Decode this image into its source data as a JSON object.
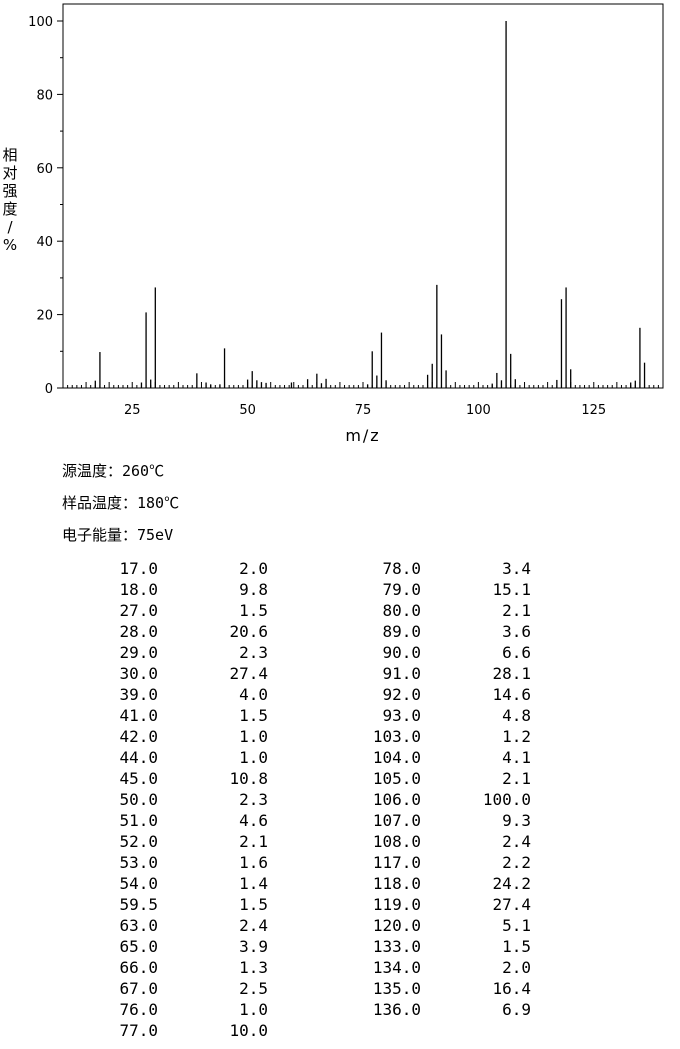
{
  "conditions": {
    "source_temp": "源温度：260℃",
    "sample_temp": "样品温度：180℃",
    "electron_energy": "电子能量：75eV"
  },
  "chart_data": {
    "type": "bar",
    "xlabel": "m/z",
    "ylabel": "相对强度/%",
    "xlim": [
      10,
      140
    ],
    "ylim": [
      0,
      100
    ],
    "xticks": [
      25,
      50,
      75,
      100,
      125
    ],
    "yticks": [
      0,
      20,
      40,
      60,
      80,
      100
    ],
    "x": [
      17,
      18,
      27,
      28,
      29,
      30,
      39,
      41,
      42,
      44,
      45,
      50,
      51,
      52,
      53,
      54,
      59.5,
      63,
      65,
      66,
      67,
      76,
      77,
      78,
      79,
      80,
      89,
      90,
      91,
      92,
      93,
      103,
      104,
      105,
      106,
      107,
      108,
      117,
      118,
      119,
      120,
      133,
      134,
      135,
      136
    ],
    "values": [
      2.0,
      9.8,
      1.5,
      20.6,
      2.3,
      27.4,
      4.0,
      1.5,
      1.0,
      1.0,
      10.8,
      2.3,
      4.6,
      2.1,
      1.6,
      1.4,
      1.5,
      2.4,
      3.9,
      1.3,
      2.5,
      1.0,
      10.0,
      3.4,
      15.1,
      2.1,
      3.6,
      6.6,
      28.1,
      14.6,
      4.8,
      1.2,
      4.1,
      2.1,
      100.0,
      9.3,
      2.4,
      2.2,
      24.2,
      27.4,
      5.1,
      1.5,
      2.0,
      16.4,
      6.9
    ]
  },
  "table": {
    "left": [
      [
        "17.0",
        "2.0"
      ],
      [
        "18.0",
        "9.8"
      ],
      [
        "27.0",
        "1.5"
      ],
      [
        "28.0",
        "20.6"
      ],
      [
        "29.0",
        "2.3"
      ],
      [
        "30.0",
        "27.4"
      ],
      [
        "39.0",
        "4.0"
      ],
      [
        "41.0",
        "1.5"
      ],
      [
        "42.0",
        "1.0"
      ],
      [
        "44.0",
        "1.0"
      ],
      [
        "45.0",
        "10.8"
      ],
      [
        "50.0",
        "2.3"
      ],
      [
        "51.0",
        "4.6"
      ],
      [
        "52.0",
        "2.1"
      ],
      [
        "53.0",
        "1.6"
      ],
      [
        "54.0",
        "1.4"
      ],
      [
        "59.5",
        "1.5"
      ],
      [
        "63.0",
        "2.4"
      ],
      [
        "65.0",
        "3.9"
      ],
      [
        "66.0",
        "1.3"
      ],
      [
        "67.0",
        "2.5"
      ],
      [
        "76.0",
        "1.0"
      ],
      [
        "77.0",
        "10.0"
      ]
    ],
    "right": [
      [
        "78.0",
        "3.4"
      ],
      [
        "79.0",
        "15.1"
      ],
      [
        "80.0",
        "2.1"
      ],
      [
        "89.0",
        "3.6"
      ],
      [
        "90.0",
        "6.6"
      ],
      [
        "91.0",
        "28.1"
      ],
      [
        "92.0",
        "14.6"
      ],
      [
        "93.0",
        "4.8"
      ],
      [
        "103.0",
        "1.2"
      ],
      [
        "104.0",
        "4.1"
      ],
      [
        "105.0",
        "2.1"
      ],
      [
        "106.0",
        "100.0"
      ],
      [
        "107.0",
        "9.3"
      ],
      [
        "108.0",
        "2.4"
      ],
      [
        "117.0",
        "2.2"
      ],
      [
        "118.0",
        "24.2"
      ],
      [
        "119.0",
        "27.4"
      ],
      [
        "120.0",
        "5.1"
      ],
      [
        "133.0",
        "1.5"
      ],
      [
        "134.0",
        "2.0"
      ],
      [
        "135.0",
        "16.4"
      ],
      [
        "136.0",
        "6.9"
      ]
    ]
  }
}
